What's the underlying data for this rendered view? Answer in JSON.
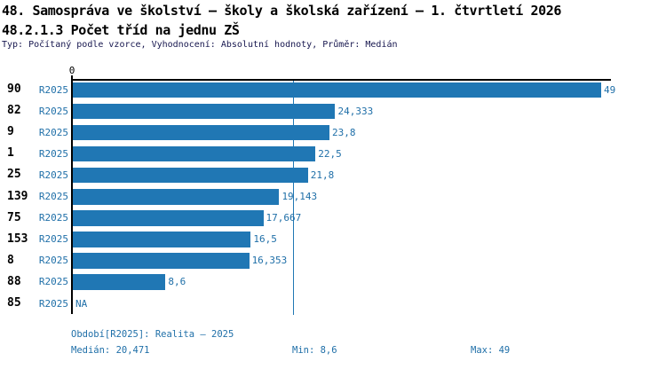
{
  "header": {
    "title_line1": "48. Samospráva ve školství – školy a školská zařízení – 1. čtvrtletí 2026",
    "title_line2": "48.2.1.3 Počet tříd na jednu ZŠ",
    "subtitle": "Typ: Počítaný podle vzorce, Vyhodnocení: Absolutní hodnoty, Průměr: Medián"
  },
  "colors": {
    "bar": "#2077b4",
    "median_line": "#2077b4",
    "blue_text": "#1f6fa8",
    "subtitle_text": "#16164e",
    "axis": "#000000"
  },
  "chart_data": {
    "type": "bar",
    "orientation": "horizontal",
    "title": "48.2.1.3 Počet tříd na jednu ZŠ",
    "series_label": "R2025",
    "categories": [
      "90",
      "82",
      "9",
      "1",
      "25",
      "139",
      "75",
      "153",
      "8",
      "88",
      "85"
    ],
    "values": [
      49,
      24.333,
      23.8,
      22.5,
      21.8,
      19.143,
      17.667,
      16.5,
      16.353,
      8.6,
      null
    ],
    "value_labels": [
      "49",
      "24,333",
      "23,8",
      "22,5",
      "21,8",
      "19,143",
      "17,667",
      "16,5",
      "16,353",
      "8,6",
      "NA"
    ],
    "xlim": [
      0,
      49
    ],
    "x_tick_labels": [
      "0"
    ],
    "grid": false,
    "legend_position": "none",
    "median_value": 20.471,
    "stats": {
      "median": 20.471,
      "min": 8.6,
      "max": 49
    }
  },
  "footer": {
    "period": "Období[R2025]: Realita – 2025",
    "median": "Medián: 20,471",
    "min": "Min: 8,6",
    "max": "Max: 49"
  }
}
